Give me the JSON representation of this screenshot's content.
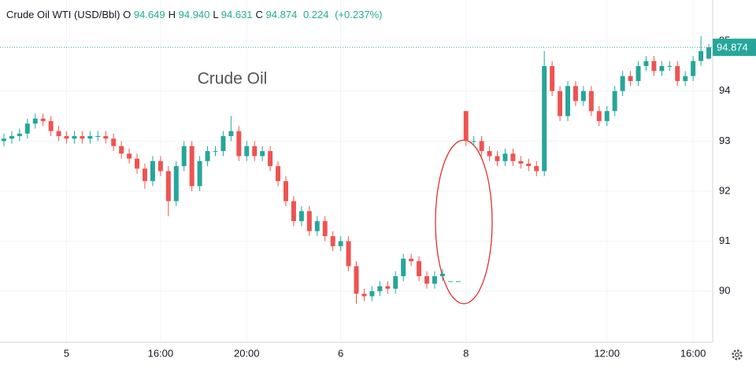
{
  "header": {
    "symbol": "Crude Oil WTI (USD/Bbl)",
    "o_label": "O",
    "o": "94.649",
    "h_label": "H",
    "h": "94.940",
    "l_label": "L",
    "l": "94.631",
    "c_label": "C",
    "c": "94.874",
    "change": "0.224",
    "change_pct": "(+0.237%)"
  },
  "chart_data": {
    "type": "candlestick",
    "watermark": "Crude Oil",
    "categories": [
      null,
      null,
      null,
      null,
      null,
      null,
      null,
      null,
      "5",
      null,
      null,
      null,
      null,
      null,
      null,
      null,
      null,
      null,
      null,
      null,
      "16:00",
      null,
      null,
      null,
      null,
      null,
      null,
      null,
      null,
      null,
      null,
      "20:00",
      null,
      null,
      null,
      null,
      null,
      null,
      null,
      null,
      null,
      null,
      null,
      "6",
      null,
      null,
      null,
      null,
      null,
      null,
      null,
      null,
      null,
      null,
      null,
      null,
      null,
      null,
      null,
      "8",
      null,
      null,
      null,
      null,
      null,
      null,
      null,
      null,
      null,
      null,
      null,
      null,
      null,
      null,
      null,
      null,
      null,
      "12:00",
      null,
      null,
      null,
      null,
      null,
      null,
      null,
      null,
      null,
      null,
      "16:00",
      null,
      null
    ],
    "open": [
      93.0,
      93.05,
      93.1,
      93.15,
      93.35,
      93.45,
      93.4,
      93.2,
      93.1,
      93.05,
      93.1,
      93.05,
      93.1,
      93.1,
      93.05,
      92.9,
      92.75,
      92.65,
      92.45,
      92.2,
      92.6,
      92.4,
      91.8,
      92.5,
      92.9,
      92.1,
      92.6,
      92.8,
      92.8,
      93.1,
      93.2,
      92.7,
      92.9,
      92.7,
      92.8,
      92.5,
      92.2,
      91.8,
      91.4,
      91.6,
      91.2,
      91.4,
      91.1,
      90.9,
      91.0,
      90.5,
      89.95,
      89.9,
      90.0,
      90.1,
      90.05,
      90.3,
      90.65,
      90.6,
      90.3,
      90.15,
      90.3,
      90.2,
      90.2,
      93.6,
      93.0,
      93.0,
      92.8,
      92.7,
      92.6,
      92.75,
      92.6,
      92.55,
      92.5,
      92.4,
      94.5,
      94.0,
      93.5,
      94.1,
      93.8,
      94.0,
      93.6,
      93.4,
      93.6,
      94.0,
      94.3,
      94.2,
      94.5,
      94.6,
      94.4,
      94.5,
      94.5,
      94.2,
      94.3,
      94.6,
      94.649
    ],
    "high": [
      93.15,
      93.2,
      93.25,
      93.45,
      93.55,
      93.55,
      93.5,
      93.3,
      93.2,
      93.2,
      93.2,
      93.2,
      93.2,
      93.2,
      93.15,
      93.0,
      92.85,
      92.75,
      92.55,
      92.7,
      92.7,
      92.5,
      92.6,
      93.0,
      93.0,
      92.7,
      92.9,
      92.9,
      93.2,
      93.5,
      93.3,
      93.0,
      93.0,
      92.9,
      92.9,
      92.6,
      92.3,
      91.9,
      91.7,
      91.7,
      91.5,
      91.5,
      91.2,
      91.1,
      91.1,
      90.6,
      90.05,
      90.1,
      90.2,
      90.2,
      90.4,
      90.75,
      90.75,
      90.7,
      90.4,
      90.4,
      90.45,
      90.2,
      90.2,
      93.6,
      93.1,
      93.1,
      92.9,
      92.8,
      92.85,
      92.85,
      92.7,
      92.65,
      92.6,
      94.8,
      94.6,
      94.1,
      94.2,
      94.2,
      94.1,
      94.1,
      93.7,
      93.7,
      94.1,
      94.4,
      94.4,
      94.6,
      94.7,
      94.7,
      94.6,
      94.6,
      94.6,
      94.4,
      94.7,
      95.1,
      94.94
    ],
    "low": [
      92.9,
      92.95,
      93.0,
      93.05,
      93.25,
      93.3,
      93.1,
      93.0,
      92.95,
      92.95,
      92.95,
      92.95,
      93.0,
      92.95,
      92.8,
      92.65,
      92.55,
      92.35,
      92.05,
      92.1,
      92.3,
      91.5,
      91.7,
      92.4,
      92.0,
      92.0,
      92.5,
      92.7,
      92.7,
      93.0,
      92.6,
      92.6,
      92.6,
      92.6,
      92.4,
      92.1,
      91.7,
      91.3,
      91.3,
      91.1,
      91.1,
      91.0,
      90.8,
      90.8,
      90.4,
      89.75,
      89.8,
      89.8,
      89.9,
      89.95,
      89.95,
      90.2,
      90.5,
      90.2,
      90.05,
      90.05,
      90.2,
      90.2,
      90.2,
      92.9,
      92.9,
      92.7,
      92.6,
      92.5,
      92.5,
      92.5,
      92.45,
      92.4,
      92.3,
      92.3,
      93.9,
      93.4,
      93.4,
      93.7,
      93.7,
      93.5,
      93.3,
      93.3,
      93.5,
      93.9,
      94.1,
      94.1,
      94.4,
      94.3,
      94.3,
      94.4,
      94.1,
      94.1,
      94.2,
      94.5,
      94.631
    ],
    "close": [
      93.05,
      93.1,
      93.15,
      93.35,
      93.45,
      93.4,
      93.2,
      93.1,
      93.05,
      93.1,
      93.05,
      93.1,
      93.1,
      93.05,
      92.9,
      92.75,
      92.65,
      92.45,
      92.2,
      92.6,
      92.4,
      91.8,
      92.5,
      92.9,
      92.1,
      92.6,
      92.8,
      92.8,
      93.1,
      93.2,
      92.7,
      92.9,
      92.7,
      92.8,
      92.5,
      92.2,
      91.8,
      91.4,
      91.6,
      91.2,
      91.4,
      91.1,
      90.9,
      91.0,
      90.5,
      89.95,
      89.9,
      90.0,
      90.1,
      90.05,
      90.3,
      90.65,
      90.6,
      90.3,
      90.15,
      90.3,
      90.35,
      90.2,
      90.2,
      93.0,
      93.0,
      92.8,
      92.7,
      92.6,
      92.75,
      92.6,
      92.55,
      92.5,
      92.4,
      94.5,
      94.0,
      93.5,
      94.1,
      93.8,
      94.0,
      93.6,
      93.4,
      93.6,
      94.0,
      94.3,
      94.2,
      94.5,
      94.6,
      94.4,
      94.5,
      94.5,
      94.2,
      94.3,
      94.6,
      94.8,
      94.874
    ],
    "up_color": "#26a69a",
    "down_color": "#ef5350",
    "ylim": [
      88.98,
      95.82
    ],
    "yticks": [
      90,
      91,
      92,
      93,
      94,
      95
    ],
    "grid": true
  }
}
